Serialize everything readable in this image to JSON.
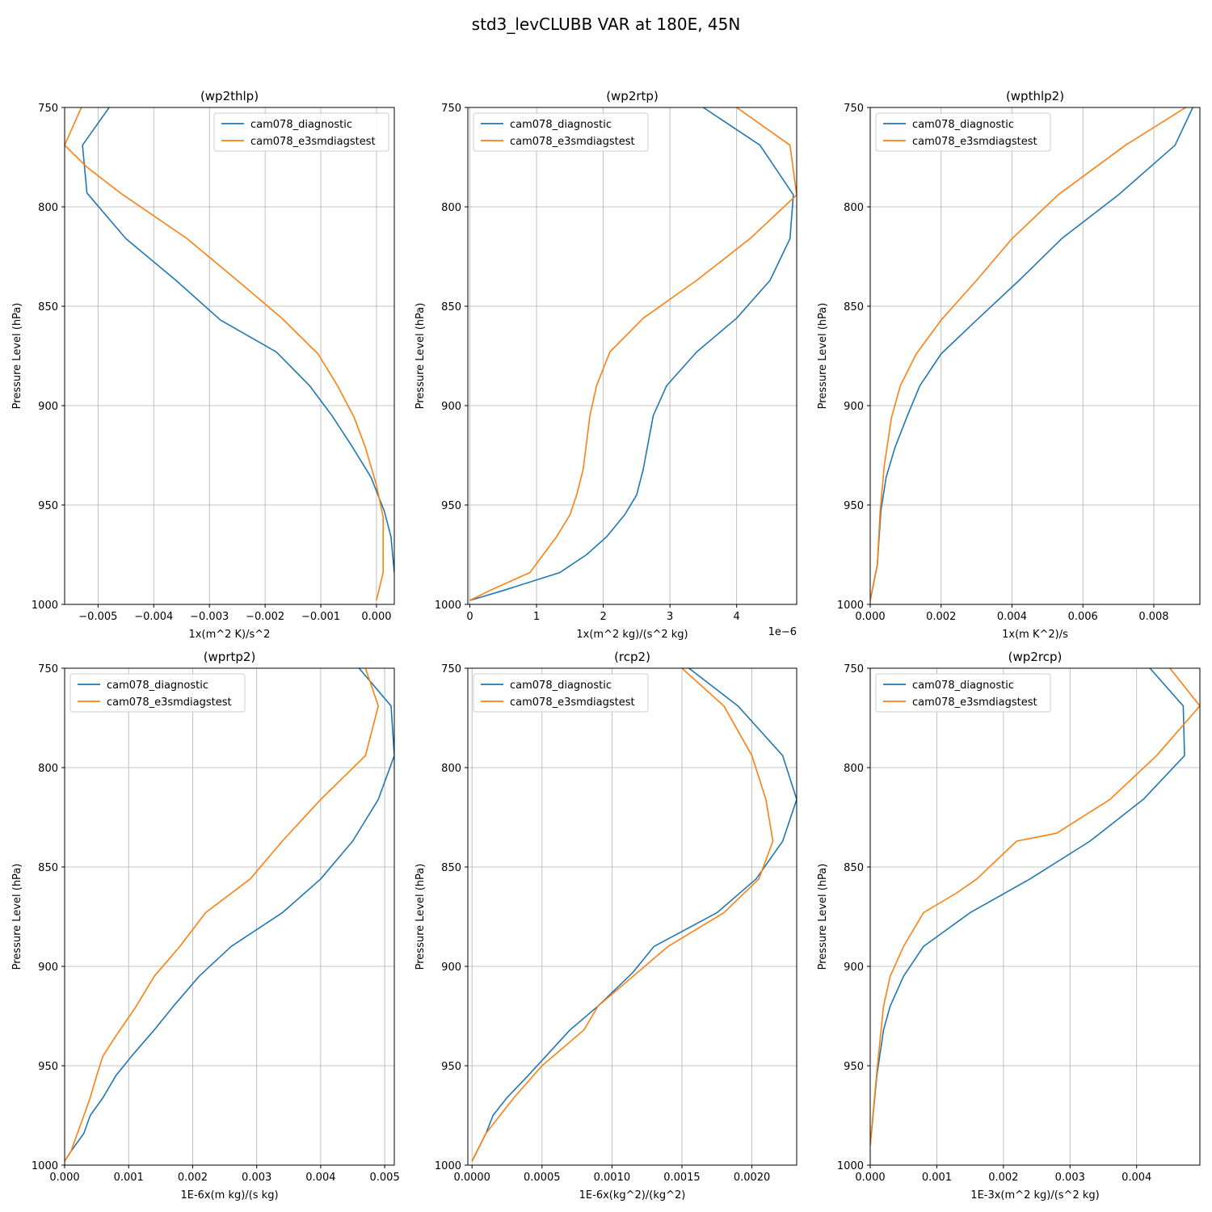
{
  "figure": {
    "title": "std3_levCLUBB VAR at 180E, 45N"
  },
  "colors": {
    "diagnostic": "#1f77b4",
    "e3smdiagstest": "#ff7f0e",
    "grid": "#b0b0b0"
  },
  "chart_data": [
    {
      "type": "line",
      "title": "(wp2thlp)",
      "xlabel": "1x(m^2 K)/s^2",
      "ylabel": "Pressure Level (hPa)",
      "xlim": [
        -0.0056,
        0.00032
      ],
      "ylim": [
        1000,
        750
      ],
      "xticks": [
        -0.005,
        -0.004,
        -0.003,
        -0.002,
        -0.001,
        0
      ],
      "xtick_labels": [
        "−0.005",
        "−0.004",
        "−0.003",
        "−0.002",
        "−0.001",
        "0.000"
      ],
      "yticks": [
        750,
        800,
        850,
        900,
        950,
        1000
      ],
      "legend": "top-right",
      "grid": true,
      "series": [
        {
          "name": "cam078_diagnostic",
          "points": [
            [
              -0.0048,
              750
            ],
            [
              -0.00528,
              769
            ],
            [
              -0.0052,
              793
            ],
            [
              -0.0045,
              816
            ],
            [
              -0.0036,
              837
            ],
            [
              -0.0028,
              857
            ],
            [
              -0.0018,
              873
            ],
            [
              -0.0012,
              890
            ],
            [
              -0.0008,
              905
            ],
            [
              -0.00045,
              920
            ],
            [
              -0.0001,
              936
            ],
            [
              0.00014,
              953
            ],
            [
              0.00026,
              966
            ],
            [
              0.00032,
              984
            ]
          ]
        },
        {
          "name": "cam078_e3smdiagstest",
          "points": [
            [
              -0.0053,
              750
            ],
            [
              -0.0056,
              769
            ],
            [
              -0.0052,
              780
            ],
            [
              -0.0046,
              793
            ],
            [
              -0.0034,
              816
            ],
            [
              -0.0025,
              837
            ],
            [
              -0.0017,
              856
            ],
            [
              -0.00105,
              874
            ],
            [
              -0.0007,
              890
            ],
            [
              -0.0004,
              906
            ],
            [
              -0.0002,
              921
            ],
            [
              0.0,
              940
            ],
            [
              0.00012,
              956
            ],
            [
              0.00012,
              984
            ],
            [
              0.0,
              998
            ]
          ]
        }
      ]
    },
    {
      "type": "line",
      "title": "(wp2rtp)",
      "xlabel": "1x(m^2 kg)/(s^2 kg)",
      "ylabel": "Pressure Level (hPa)",
      "offset_text": "1e−6",
      "xlim": [
        -3e-08,
        4.9e-06
      ],
      "ylim": [
        1000,
        750
      ],
      "xticks": [
        0,
        1e-06,
        2e-06,
        3e-06,
        4e-06
      ],
      "xtick_labels": [
        "0",
        "1",
        "2",
        "3",
        "4"
      ],
      "yticks": [
        750,
        800,
        850,
        900,
        950,
        1000
      ],
      "legend": "top-left",
      "grid": true,
      "series": [
        {
          "name": "cam078_diagnostic",
          "points": [
            [
              3.5e-06,
              750
            ],
            [
              4.35e-06,
              769
            ],
            [
              4.85e-06,
              794
            ],
            [
              4.8e-06,
              816
            ],
            [
              4.5e-06,
              837
            ],
            [
              4e-06,
              856
            ],
            [
              3.4e-06,
              873
            ],
            [
              2.95e-06,
              890
            ],
            [
              2.75e-06,
              905
            ],
            [
              2.6e-06,
              932
            ],
            [
              2.5e-06,
              945
            ],
            [
              2.32e-06,
              955
            ],
            [
              2.05e-06,
              966
            ],
            [
              1.75e-06,
              975
            ],
            [
              1.35e-06,
              984
            ],
            [
              5e-07,
              993
            ],
            [
              0.0,
              998
            ]
          ]
        },
        {
          "name": "cam078_e3smdiagstest",
          "points": [
            [
              4e-06,
              750
            ],
            [
              4.8e-06,
              769
            ],
            [
              4.9e-06,
              794
            ],
            [
              4.2e-06,
              816
            ],
            [
              3.4e-06,
              837
            ],
            [
              2.6e-06,
              856
            ],
            [
              2.1e-06,
              873
            ],
            [
              1.9e-06,
              890
            ],
            [
              1.8e-06,
              905
            ],
            [
              1.7e-06,
              932
            ],
            [
              1.6e-06,
              945
            ],
            [
              1.5e-06,
              955
            ],
            [
              1.3e-06,
              966
            ],
            [
              1.1e-06,
              975
            ],
            [
              9e-07,
              984
            ],
            [
              3e-07,
              993
            ],
            [
              0.0,
              998
            ]
          ]
        }
      ]
    },
    {
      "type": "line",
      "title": "(wpthlp2)",
      "xlabel": "1x(m K^2)/s",
      "ylabel": "Pressure Level (hPa)",
      "xlim": [
        0,
        0.0093
      ],
      "ylim": [
        1000,
        750
      ],
      "xticks": [
        0,
        0.002,
        0.004,
        0.006,
        0.008
      ],
      "xtick_labels": [
        "0.000",
        "0.002",
        "0.004",
        "0.006",
        "0.008"
      ],
      "yticks": [
        750,
        800,
        850,
        900,
        950,
        1000
      ],
      "legend": "top-left",
      "grid": true,
      "series": [
        {
          "name": "cam078_diagnostic",
          "points": [
            [
              0.0091,
              750
            ],
            [
              0.0086,
              769
            ],
            [
              0.007,
              794
            ],
            [
              0.0054,
              816
            ],
            [
              0.0042,
              837
            ],
            [
              0.003,
              857
            ],
            [
              0.002,
              874
            ],
            [
              0.0014,
              890
            ],
            [
              0.00105,
              905
            ],
            [
              0.0007,
              921
            ],
            [
              0.00045,
              936
            ],
            [
              0.0003,
              953
            ],
            [
              0.0002,
              980
            ],
            [
              0.0,
              998
            ]
          ]
        },
        {
          "name": "cam078_e3smdiagstest",
          "points": [
            [
              0.0089,
              750
            ],
            [
              0.0072,
              769
            ],
            [
              0.0053,
              794
            ],
            [
              0.004,
              816
            ],
            [
              0.003,
              837
            ],
            [
              0.002,
              857
            ],
            [
              0.0013,
              874
            ],
            [
              0.00085,
              890
            ],
            [
              0.0006,
              906
            ],
            [
              0.0004,
              930
            ],
            [
              0.00028,
              953
            ],
            [
              0.0002,
              980
            ],
            [
              0.0,
              998
            ]
          ]
        }
      ]
    },
    {
      "type": "line",
      "title": "(wprtp2)",
      "xlabel": "1E-6x(m kg)/(s kg)",
      "ylabel": "Pressure Level (hPa)",
      "xlim": [
        0,
        0.00515
      ],
      "ylim": [
        1000,
        750
      ],
      "xticks": [
        0,
        0.001,
        0.002,
        0.003,
        0.004,
        0.005
      ],
      "xtick_labels": [
        "0.000",
        "0.001",
        "0.002",
        "0.003",
        "0.004",
        "0.005"
      ],
      "yticks": [
        750,
        800,
        850,
        900,
        950,
        1000
      ],
      "legend": "top-left",
      "grid": true,
      "series": [
        {
          "name": "cam078_diagnostic",
          "points": [
            [
              0.0046,
              750
            ],
            [
              0.0051,
              769
            ],
            [
              0.00515,
              794
            ],
            [
              0.0049,
              816
            ],
            [
              0.0045,
              837
            ],
            [
              0.004,
              856
            ],
            [
              0.0034,
              873
            ],
            [
              0.0026,
              890
            ],
            [
              0.0021,
              905
            ],
            [
              0.0017,
              920
            ],
            [
              0.0014,
              932
            ],
            [
              0.00105,
              945
            ],
            [
              0.0008,
              955
            ],
            [
              0.0006,
              966
            ],
            [
              0.0004,
              975
            ],
            [
              0.0003,
              984
            ],
            [
              0.0001,
              993
            ],
            [
              0.0,
              998
            ]
          ]
        },
        {
          "name": "cam078_e3smdiagstest",
          "points": [
            [
              0.0047,
              750
            ],
            [
              0.0049,
              769
            ],
            [
              0.0047,
              794
            ],
            [
              0.004,
              816
            ],
            [
              0.0034,
              837
            ],
            [
              0.0029,
              856
            ],
            [
              0.0022,
              873
            ],
            [
              0.0018,
              890
            ],
            [
              0.0014,
              905
            ],
            [
              0.0011,
              921
            ],
            [
              0.0008,
              935
            ],
            [
              0.0006,
              945
            ],
            [
              0.0005,
              955
            ],
            [
              0.0004,
              966
            ],
            [
              0.0003,
              975
            ],
            [
              0.0002,
              984
            ],
            [
              0.0001,
              993
            ],
            [
              0.0,
              998
            ]
          ]
        }
      ]
    },
    {
      "type": "line",
      "title": "(rcp2)",
      "xlabel": "1E-6x(kg^2)/(kg^2)",
      "ylabel": "Pressure Level (hPa)",
      "xlim": [
        -3e-05,
        0.00232
      ],
      "ylim": [
        1000,
        750
      ],
      "xticks": [
        0,
        0.0005,
        0.001,
        0.0015,
        0.002
      ],
      "xtick_labels": [
        "0.0000",
        "0.0005",
        "0.0010",
        "0.0015",
        "0.0020"
      ],
      "yticks": [
        750,
        800,
        850,
        900,
        950,
        1000
      ],
      "legend": "top-left",
      "grid": true,
      "series": [
        {
          "name": "cam078_diagnostic",
          "points": [
            [
              0.00155,
              750
            ],
            [
              0.0019,
              769
            ],
            [
              0.00222,
              794
            ],
            [
              0.00232,
              816
            ],
            [
              0.00222,
              837
            ],
            [
              0.00203,
              856
            ],
            [
              0.00175,
              873
            ],
            [
              0.0013,
              890
            ],
            [
              0.00115,
              903
            ],
            [
              0.0009,
              920
            ],
            [
              0.0007,
              932
            ],
            [
              0.0004,
              955
            ],
            [
              0.00025,
              966
            ],
            [
              0.00015,
              975
            ],
            [
              0.0001,
              984
            ],
            [
              0.0,
              998
            ]
          ]
        },
        {
          "name": "cam078_e3smdiagstest",
          "points": [
            [
              0.0015,
              750
            ],
            [
              0.0018,
              769
            ],
            [
              0.002,
              794
            ],
            [
              0.0021,
              816
            ],
            [
              0.00215,
              837
            ],
            [
              0.00205,
              856
            ],
            [
              0.0018,
              873
            ],
            [
              0.0014,
              890
            ],
            [
              0.00115,
              905
            ],
            [
              0.0009,
              920
            ],
            [
              0.0008,
              932
            ],
            [
              0.0005,
              950
            ],
            [
              0.0003,
              966
            ],
            [
              0.0002,
              975
            ],
            [
              0.0001,
              984
            ],
            [
              0.0,
              998
            ]
          ]
        }
      ]
    },
    {
      "type": "line",
      "title": "(wp2rcp)",
      "xlabel": "1E-3x(m^2 kg)/(s^2 kg)",
      "ylabel": "Pressure Level (hPa)",
      "xlim": [
        0,
        0.00495
      ],
      "ylim": [
        1000,
        750
      ],
      "xticks": [
        0,
        0.001,
        0.002,
        0.003,
        0.004
      ],
      "xtick_labels": [
        "0.000",
        "0.001",
        "0.002",
        "0.003",
        "0.004"
      ],
      "yticks": [
        750,
        800,
        850,
        900,
        950,
        1000
      ],
      "legend": "top-left",
      "grid": true,
      "series": [
        {
          "name": "cam078_diagnostic",
          "points": [
            [
              0.0042,
              750
            ],
            [
              0.0047,
              769
            ],
            [
              0.00472,
              794
            ],
            [
              0.0041,
              816
            ],
            [
              0.0033,
              837
            ],
            [
              0.0024,
              856
            ],
            [
              0.0015,
              873
            ],
            [
              0.0008,
              890
            ],
            [
              0.0005,
              905
            ],
            [
              0.0003,
              920
            ],
            [
              0.0002,
              932
            ],
            [
              0.0001,
              955
            ],
            [
              0.0,
              990
            ]
          ]
        },
        {
          "name": "cam078_e3smdiagstest",
          "points": [
            [
              0.0045,
              750
            ],
            [
              0.00495,
              769
            ],
            [
              0.0043,
              794
            ],
            [
              0.0036,
              816
            ],
            [
              0.0028,
              833
            ],
            [
              0.0022,
              837
            ],
            [
              0.0016,
              856
            ],
            [
              0.0013,
              863
            ],
            [
              0.0008,
              873
            ],
            [
              0.0005,
              890
            ],
            [
              0.0003,
              905
            ],
            [
              0.0002,
              920
            ],
            [
              0.0001,
              953
            ],
            [
              0.0,
              990
            ]
          ]
        }
      ]
    }
  ]
}
